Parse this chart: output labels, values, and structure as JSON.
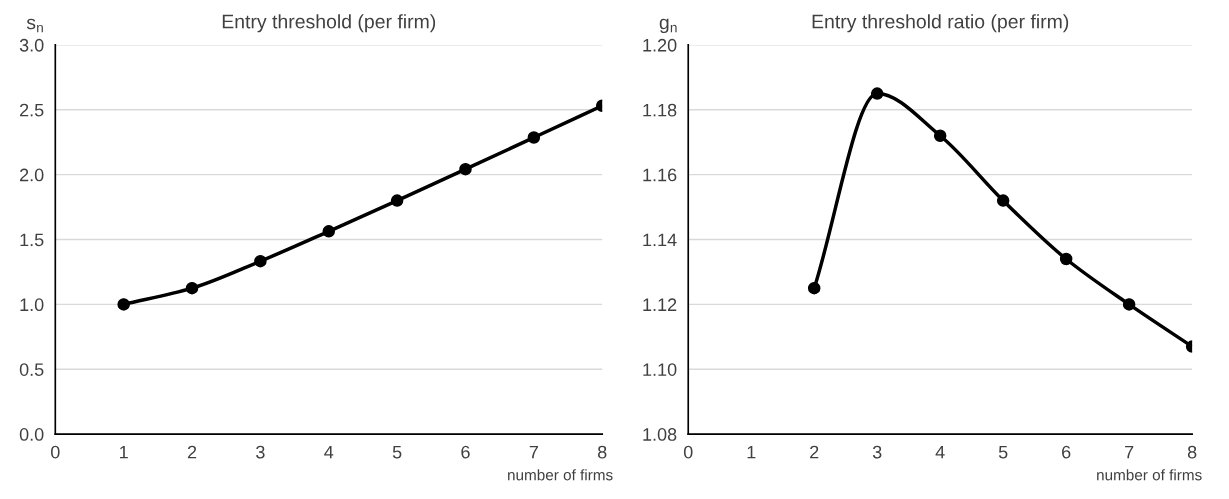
{
  "chart_data": [
    {
      "type": "line",
      "title": "Entry threshold (per firm)",
      "ylabel": "s$_{n}$",
      "xlabel": "number of firms",
      "series": [
        {
          "color": "#000000",
          "x": [
            1,
            2,
            3,
            4,
            5,
            6,
            7,
            8
          ],
          "values": [
            1.0,
            1.125,
            1.333,
            1.563,
            1.8,
            2.042,
            2.286,
            2.531
          ]
        }
      ],
      "xlim": [
        0,
        8
      ],
      "xticks": [
        0,
        1,
        2,
        3,
        4,
        5,
        6,
        7,
        8
      ],
      "ylim": [
        0,
        3
      ],
      "yticks": [
        {
          "value": 0,
          "label": "0.0"
        },
        0.5,
        {
          "value": 1,
          "label": "1.0"
        },
        1.5,
        {
          "value": 2,
          "label": "2.0"
        },
        2.5,
        {
          "value": 3,
          "label": "3.0"
        }
      ],
      "grid": "y",
      "marker": "circle",
      "line_style": "solid"
    },
    {
      "type": "line",
      "title": "Entry threshold ratio (per firm)",
      "ylabel": "g$_{n}$",
      "xlabel": "number of firms",
      "series": [
        {
          "color": "#000000",
          "x": [
            2,
            3,
            4,
            5,
            6,
            7,
            8
          ],
          "values": [
            1.125,
            1.185,
            1.172,
            1.152,
            1.134,
            1.12,
            1.107
          ]
        }
      ],
      "xlim": [
        0,
        8
      ],
      "xticks": [
        0,
        1,
        2,
        3,
        4,
        5,
        6,
        7,
        8
      ],
      "ylim": [
        1.08,
        1.2
      ],
      "yticks": [
        1.08,
        {
          "value": 1.1,
          "label": "1.10"
        },
        1.12,
        1.14,
        1.16,
        1.18,
        {
          "value": 1.2,
          "label": "1.20"
        }
      ],
      "grid": "y",
      "marker": "circle",
      "line_style": "solid"
    }
  ]
}
